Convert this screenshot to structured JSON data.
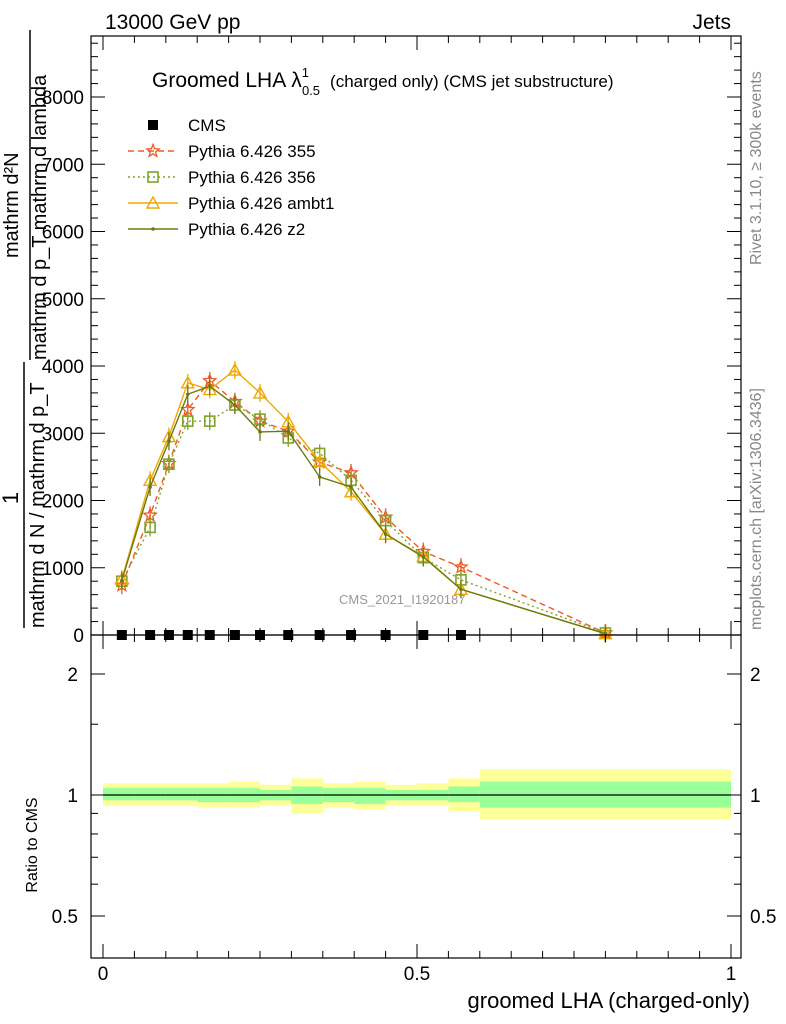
{
  "header": {
    "energy_label": "13000 GeV pp",
    "category_label": "Jets"
  },
  "side_labels": {
    "rivet": "Rivet 3.1.10, ≥ 300k events",
    "mcplots": "mcplots.cern.ch [arXiv:1306.3436]"
  },
  "watermark": "CMS_2021_I1920187",
  "colors": {
    "cms": "#000000",
    "p355": "#ee5a24",
    "p356": "#7ea32a",
    "ambt1": "#f0a800",
    "z2": "#6b7a10",
    "band_inner": "#99ff99",
    "band_outer": "#ffff99"
  },
  "chart_data": [
    {
      "type": "line",
      "title_main": "Groomed LHA",
      "title_lambda": "λ",
      "title_sup": "1",
      "title_sub": "0.5",
      "title_rest": "(charged only) (CMS jet substructure)",
      "ylabel_top": "mathrm d²N",
      "ylabel_bottom": "mathrm d p_T mathrm d lambda",
      "ylabel_left_top": "1",
      "ylabel_left_bottom": "mathrm d N / mathrm d p_T",
      "xlim": [
        0,
        1
      ],
      "ylim": [
        0,
        8800
      ],
      "yticks": [
        0,
        1000,
        2000,
        3000,
        4000,
        5000,
        6000,
        7000,
        8000
      ],
      "ytick_labels": [
        "0",
        "1000",
        "2000",
        "3000",
        "4000",
        "5000",
        "6000",
        "7000",
        "8000"
      ],
      "legend": [
        "CMS",
        "Pythia 6.426 355",
        "Pythia 6.426 356",
        "Pythia 6.426 ambt1",
        "Pythia 6.426 z2"
      ],
      "x": [
        0.03,
        0.075,
        0.105,
        0.135,
        0.17,
        0.21,
        0.25,
        0.295,
        0.345,
        0.395,
        0.45,
        0.51,
        0.57,
        0.8
      ],
      "series": [
        {
          "name": "CMS",
          "values": [
            0,
            0,
            0,
            0,
            0,
            0,
            0,
            0,
            0,
            0,
            0,
            0,
            0,
            null
          ]
        },
        {
          "name": "Pythia 6.426 355",
          "values": [
            740,
            1780,
            2550,
            3350,
            3780,
            3470,
            3180,
            3030,
            2570,
            2410,
            1750,
            1240,
            1010,
            30
          ]
        },
        {
          "name": "Pythia 6.426 356",
          "values": [
            800,
            1600,
            2540,
            3180,
            3180,
            3420,
            3210,
            2930,
            2700,
            2300,
            1700,
            1150,
            820,
            30
          ]
        },
        {
          "name": "Pythia 6.426 ambt1",
          "values": [
            830,
            2300,
            2950,
            3750,
            3650,
            3940,
            3600,
            3170,
            2580,
            2130,
            1500,
            1170,
            680,
            20
          ]
        },
        {
          "name": "Pythia 6.426 z2",
          "values": [
            810,
            2200,
            2880,
            3580,
            3700,
            3420,
            3020,
            3030,
            2350,
            2200,
            1500,
            1160,
            680,
            20
          ]
        }
      ]
    },
    {
      "type": "area",
      "ylabel": "Ratio to CMS",
      "xlabel": "groomed LHA (charged-only)",
      "xlim": [
        0,
        1
      ],
      "ylim": [
        0.4,
        2.4
      ],
      "yscale": "log",
      "yticks": [
        0.5,
        1,
        2
      ],
      "ytick_labels": [
        "0.5",
        "1",
        "2"
      ],
      "xticks": [
        0,
        0.5,
        1
      ],
      "xtick_labels": [
        "0",
        "0.5",
        "1"
      ],
      "bin_edges": [
        0,
        0.05,
        0.1,
        0.15,
        0.2,
        0.25,
        0.3,
        0.35,
        0.4,
        0.45,
        0.5,
        0.55,
        0.6,
        1.0
      ],
      "inner_band": [
        [
          0.97,
          1.04
        ],
        [
          0.97,
          1.04
        ],
        [
          0.97,
          1.04
        ],
        [
          0.96,
          1.04
        ],
        [
          0.96,
          1.04
        ],
        [
          0.97,
          1.03
        ],
        [
          0.95,
          1.05
        ],
        [
          0.96,
          1.04
        ],
        [
          0.95,
          1.04
        ],
        [
          0.97,
          1.03
        ],
        [
          0.97,
          1.03
        ],
        [
          0.96,
          1.05
        ],
        [
          0.93,
          1.08
        ],
        [
          0.93,
          1.08
        ]
      ],
      "outer_band": [
        [
          0.94,
          1.07
        ],
        [
          0.94,
          1.07
        ],
        [
          0.94,
          1.07
        ],
        [
          0.93,
          1.07
        ],
        [
          0.93,
          1.08
        ],
        [
          0.94,
          1.06
        ],
        [
          0.9,
          1.1
        ],
        [
          0.93,
          1.07
        ],
        [
          0.92,
          1.08
        ],
        [
          0.94,
          1.06
        ],
        [
          0.94,
          1.07
        ],
        [
          0.91,
          1.1
        ],
        [
          0.87,
          1.16
        ],
        [
          0.87,
          1.16
        ]
      ]
    }
  ]
}
